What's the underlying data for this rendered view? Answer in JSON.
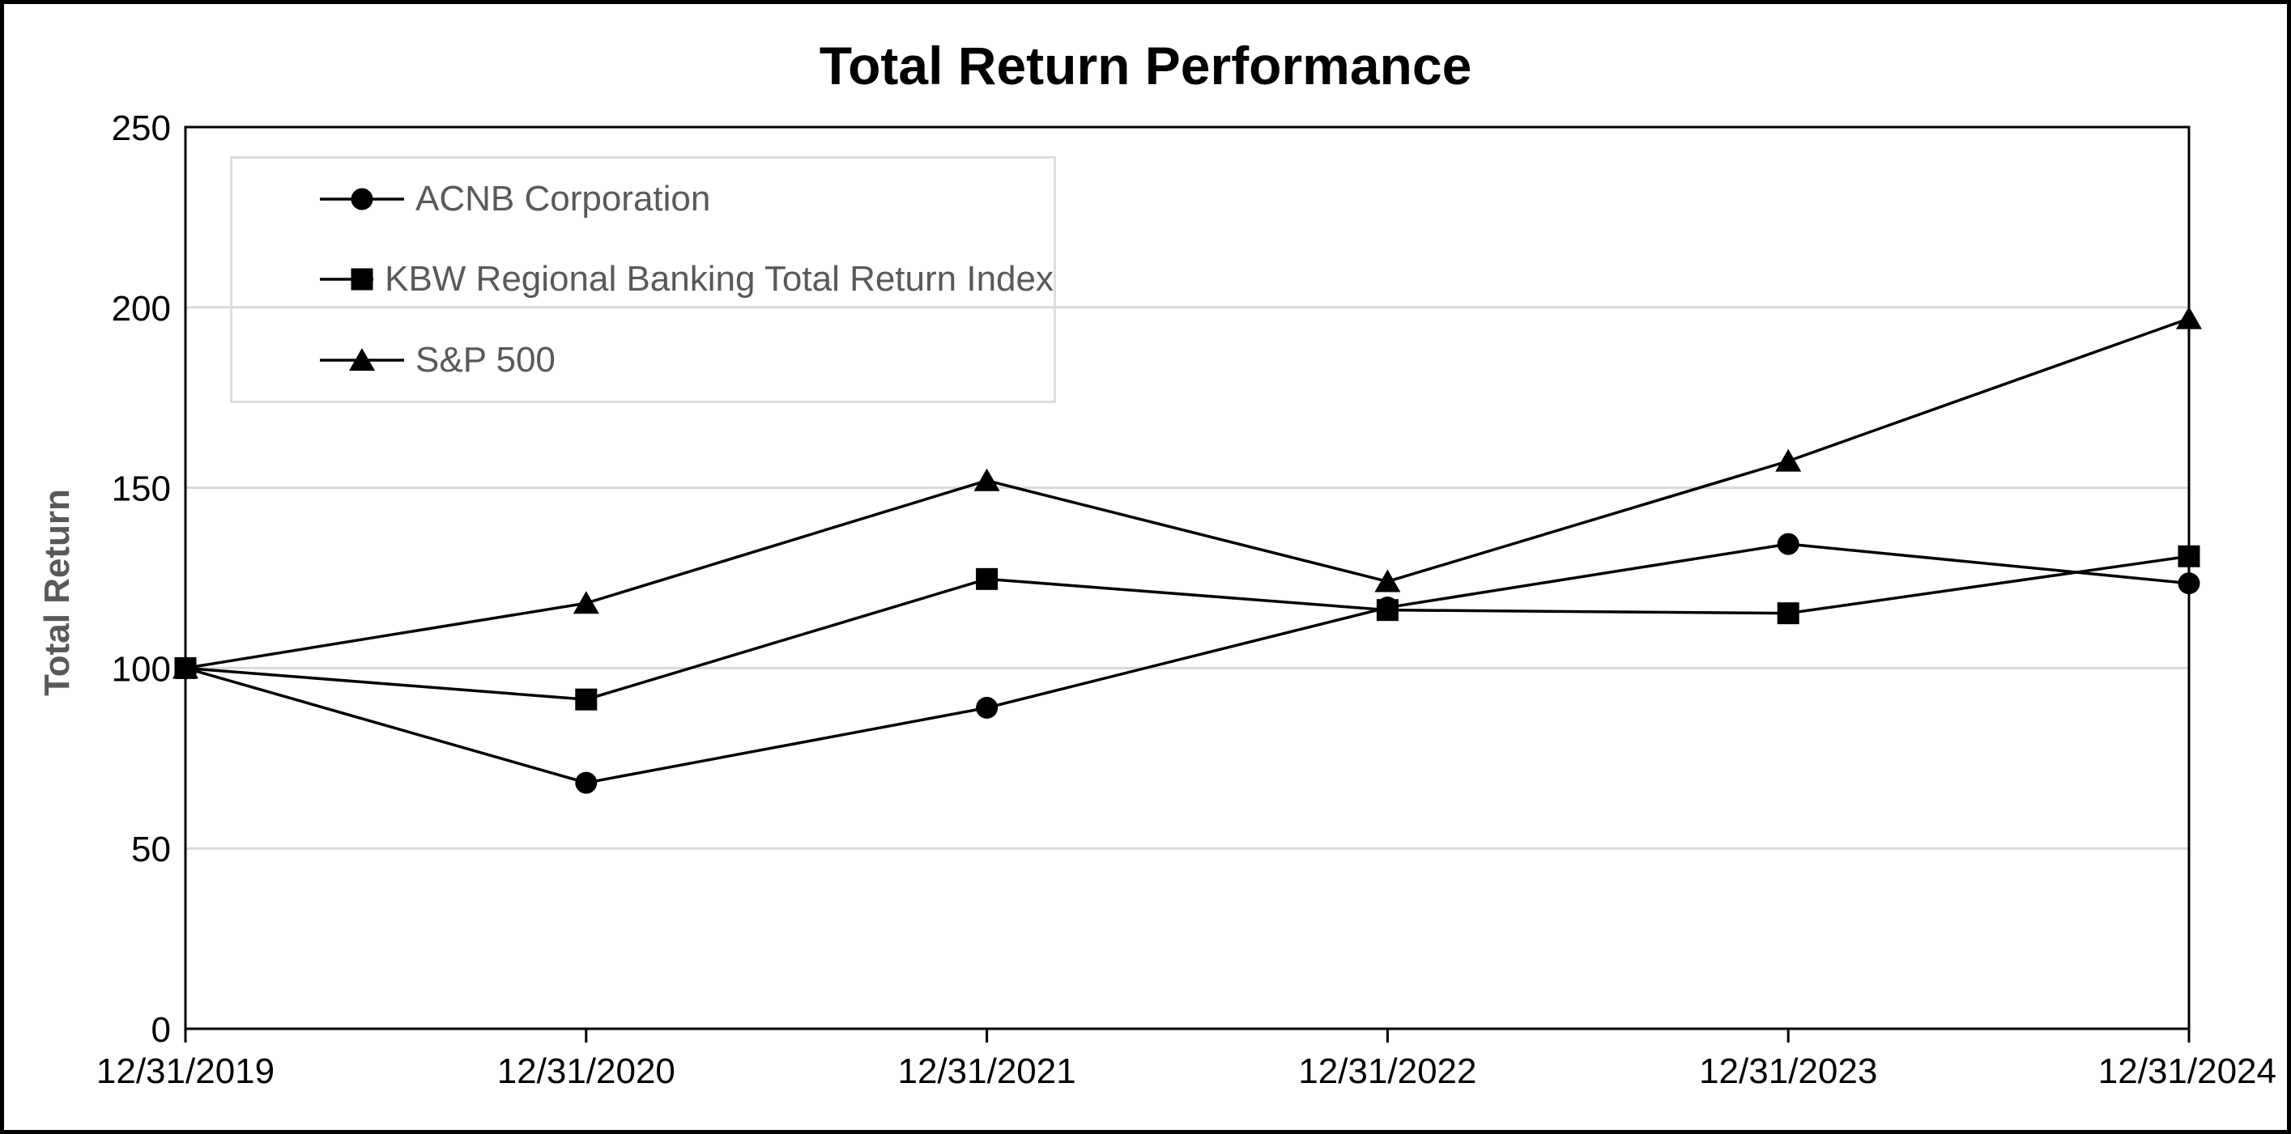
{
  "title": "Total Return Performance",
  "y_axis_title": "Total Return",
  "legend": {
    "items": [
      {
        "label": "ACNB Corporation",
        "marker": "circle"
      },
      {
        "label": "KBW Regional Banking Total Return Index",
        "marker": "square"
      },
      {
        "label": "S&P 500",
        "marker": "triangle"
      }
    ]
  },
  "chart_data": {
    "type": "line",
    "title": "Total Return Performance",
    "xlabel": "",
    "ylabel": "Total Return",
    "categories": [
      "12/31/2019",
      "12/31/2020",
      "12/31/2021",
      "12/31/2022",
      "12/31/2023",
      "12/31/2024"
    ],
    "series": [
      {
        "name": "ACNB Corporation",
        "marker": "circle",
        "values": [
          100,
          68.2,
          89.0,
          116.8,
          134.4,
          123.5
        ]
      },
      {
        "name": "KBW Regional Banking Total Return Index",
        "marker": "square",
        "values": [
          100,
          91.3,
          124.7,
          116.1,
          115.2,
          131.0
        ]
      },
      {
        "name": "S&P 500",
        "marker": "triangle",
        "values": [
          100,
          118.0,
          152.0,
          124.0,
          157.4,
          196.9
        ]
      }
    ],
    "ylim": [
      0,
      250
    ],
    "yticks": [
      0,
      50,
      100,
      150,
      200,
      250
    ],
    "grid": true,
    "legend_position": "top-left-inside",
    "draw_order": [
      "ACNB Corporation",
      "S&P 500",
      "KBW Regional Banking Total Return Index"
    ]
  },
  "colors": {
    "series_line": "#000000",
    "marker_fill": "#000000",
    "gridline": "#d9d9d9",
    "plot_border": "#000000",
    "figure_border": "#000000",
    "tick_label": "#000000",
    "legend_text": "#595959",
    "legend_border": "#dcdcdc",
    "axis_title_text": "#595959",
    "background": "#ffffff"
  }
}
